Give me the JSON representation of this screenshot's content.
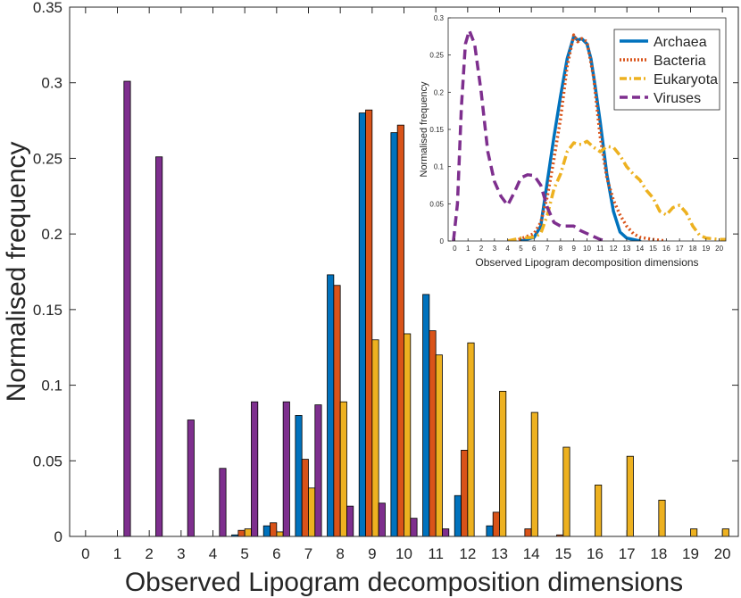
{
  "chart_data": [
    {
      "type": "bar",
      "xlabel": "Observed Lipogram decomposition dimensions",
      "ylabel": "Normalised frequency",
      "xlim": [
        -0.5,
        20.5
      ],
      "ylim": [
        0,
        0.35
      ],
      "xticks": [
        "0",
        "1",
        "2",
        "3",
        "4",
        "5",
        "6",
        "7",
        "8",
        "9",
        "10",
        "11",
        "12",
        "13",
        "14",
        "15",
        "16",
        "17",
        "18",
        "19",
        "20"
      ],
      "yticks": [
        "0",
        "0.05",
        "0.1",
        "0.15",
        "0.2",
        "0.25",
        "0.3",
        "0.35"
      ],
      "categories": [
        0,
        1,
        2,
        3,
        4,
        5,
        6,
        7,
        8,
        9,
        10,
        11,
        12,
        13,
        14,
        15,
        16,
        17,
        18,
        19,
        20
      ],
      "series": [
        {
          "color": "#0072BD",
          "values": [
            0,
            0,
            0,
            0,
            0,
            0.001,
            0.007,
            0.08,
            0.173,
            0.28,
            0.267,
            0.16,
            0.027,
            0.007,
            0,
            0,
            0,
            0,
            0,
            0,
            0
          ]
        },
        {
          "color": "#D95319",
          "values": [
            0,
            0,
            0,
            0,
            0,
            0.004,
            0.009,
            0.051,
            0.166,
            0.282,
            0.272,
            0.136,
            0.057,
            0.016,
            0.005,
            0.001,
            0,
            0,
            0,
            0,
            0
          ]
        },
        {
          "color": "#EDB120",
          "values": [
            0,
            0,
            0,
            0,
            0,
            0.005,
            0.003,
            0.032,
            0.089,
            0.13,
            0.134,
            0.12,
            0.128,
            0.096,
            0.082,
            0.059,
            0.034,
            0.053,
            0.024,
            0.005,
            0.005
          ]
        },
        {
          "color": "#7E2F8E",
          "values": [
            0,
            0.301,
            0.251,
            0.077,
            0.045,
            0.089,
            0.089,
            0.087,
            0.02,
            0.022,
            0.012,
            0.005,
            0,
            0,
            0,
            0,
            0,
            0,
            0,
            0,
            0
          ]
        }
      ]
    },
    {
      "type": "line",
      "xlabel": "Observed Lipogram decomposition dimensions",
      "ylabel": "Normalised frequency",
      "xlim": [
        -0.5,
        20.5
      ],
      "ylim": [
        0,
        0.3
      ],
      "xticks": [
        "0",
        "1",
        "2",
        "3",
        "4",
        "5",
        "6",
        "7",
        "8",
        "9",
        "10",
        "11",
        "12",
        "13",
        "14",
        "15",
        "16",
        "17",
        "18",
        "19",
        "20"
      ],
      "yticks": [
        "0",
        "0.05",
        "0.1",
        "0.15",
        "0.2",
        "0.25",
        "0.3"
      ],
      "legend_position": "top-right",
      "series": [
        {
          "name": "Archaea",
          "color": "#0072BD",
          "style": "solid",
          "points": [
            [
              5,
              0
            ],
            [
              6,
              0.005
            ],
            [
              6.5,
              0.02
            ],
            [
              7,
              0.08
            ],
            [
              7.5,
              0.14
            ],
            [
              8,
              0.195
            ],
            [
              8.5,
              0.245
            ],
            [
              9,
              0.275
            ],
            [
              9.3,
              0.27
            ],
            [
              9.6,
              0.272
            ],
            [
              10,
              0.265
            ],
            [
              10.3,
              0.245
            ],
            [
              10.6,
              0.21
            ],
            [
              11,
              0.16
            ],
            [
              11.5,
              0.09
            ],
            [
              12,
              0.04
            ],
            [
              12.5,
              0.012
            ],
            [
              13,
              0.004
            ],
            [
              14,
              0
            ]
          ]
        },
        {
          "name": "Bacteria",
          "color": "#D95319",
          "style": "dotted",
          "points": [
            [
              4.5,
              0
            ],
            [
              5,
              0.003
            ],
            [
              6,
              0.01
            ],
            [
              6.5,
              0.025
            ],
            [
              7,
              0.06
            ],
            [
              7.5,
              0.11
            ],
            [
              8,
              0.165
            ],
            [
              8.5,
              0.235
            ],
            [
              9,
              0.277
            ],
            [
              9.3,
              0.268
            ],
            [
              9.6,
              0.272
            ],
            [
              10,
              0.268
            ],
            [
              10.5,
              0.22
            ],
            [
              11,
              0.14
            ],
            [
              11.5,
              0.085
            ],
            [
              12,
              0.055
            ],
            [
              12.5,
              0.035
            ],
            [
              13,
              0.02
            ],
            [
              13.5,
              0.01
            ],
            [
              14,
              0.005
            ],
            [
              15,
              0.002
            ],
            [
              16,
              0
            ]
          ]
        },
        {
          "name": "Eukaryota",
          "color": "#EDB120",
          "style": "dashdot",
          "points": [
            [
              4,
              0
            ],
            [
              5,
              0.004
            ],
            [
              6,
              0.005
            ],
            [
              6.5,
              0.01
            ],
            [
              7,
              0.035
            ],
            [
              7.5,
              0.07
            ],
            [
              8,
              0.09
            ],
            [
              8.5,
              0.12
            ],
            [
              9,
              0.132
            ],
            [
              9.3,
              0.13
            ],
            [
              9.6,
              0.13
            ],
            [
              10,
              0.134
            ],
            [
              10.5,
              0.126
            ],
            [
              11,
              0.12
            ],
            [
              11.5,
              0.127
            ],
            [
              12,
              0.126
            ],
            [
              12.5,
              0.115
            ],
            [
              13,
              0.1
            ],
            [
              13.5,
              0.09
            ],
            [
              14,
              0.082
            ],
            [
              14.5,
              0.068
            ],
            [
              15,
              0.058
            ],
            [
              15.5,
              0.04
            ],
            [
              16,
              0.035
            ],
            [
              16.5,
              0.045
            ],
            [
              17,
              0.048
            ],
            [
              17.5,
              0.038
            ],
            [
              18,
              0.02
            ],
            [
              18.5,
              0.008
            ],
            [
              19,
              0.004
            ],
            [
              20,
              0.002
            ],
            [
              20.5,
              0.002
            ]
          ]
        },
        {
          "name": "Viruses",
          "color": "#7E2F8E",
          "style": "dashed",
          "points": [
            [
              -0.1,
              0
            ],
            [
              0.2,
              0.05
            ],
            [
              0.5,
              0.18
            ],
            [
              0.8,
              0.265
            ],
            [
              1.1,
              0.283
            ],
            [
              1.5,
              0.265
            ],
            [
              2,
              0.2
            ],
            [
              2.5,
              0.12
            ],
            [
              3,
              0.08
            ],
            [
              3.5,
              0.06
            ],
            [
              4,
              0.048
            ],
            [
              4.5,
              0.065
            ],
            [
              5,
              0.085
            ],
            [
              5.5,
              0.089
            ],
            [
              6,
              0.088
            ],
            [
              6.5,
              0.075
            ],
            [
              7,
              0.045
            ],
            [
              7.5,
              0.025
            ],
            [
              8,
              0.02
            ],
            [
              8.5,
              0.02
            ],
            [
              9,
              0.02
            ],
            [
              9.5,
              0.014
            ],
            [
              10,
              0.01
            ],
            [
              10.5,
              0.006
            ],
            [
              11,
              0.002
            ],
            [
              11.5,
              0
            ]
          ]
        }
      ]
    }
  ]
}
